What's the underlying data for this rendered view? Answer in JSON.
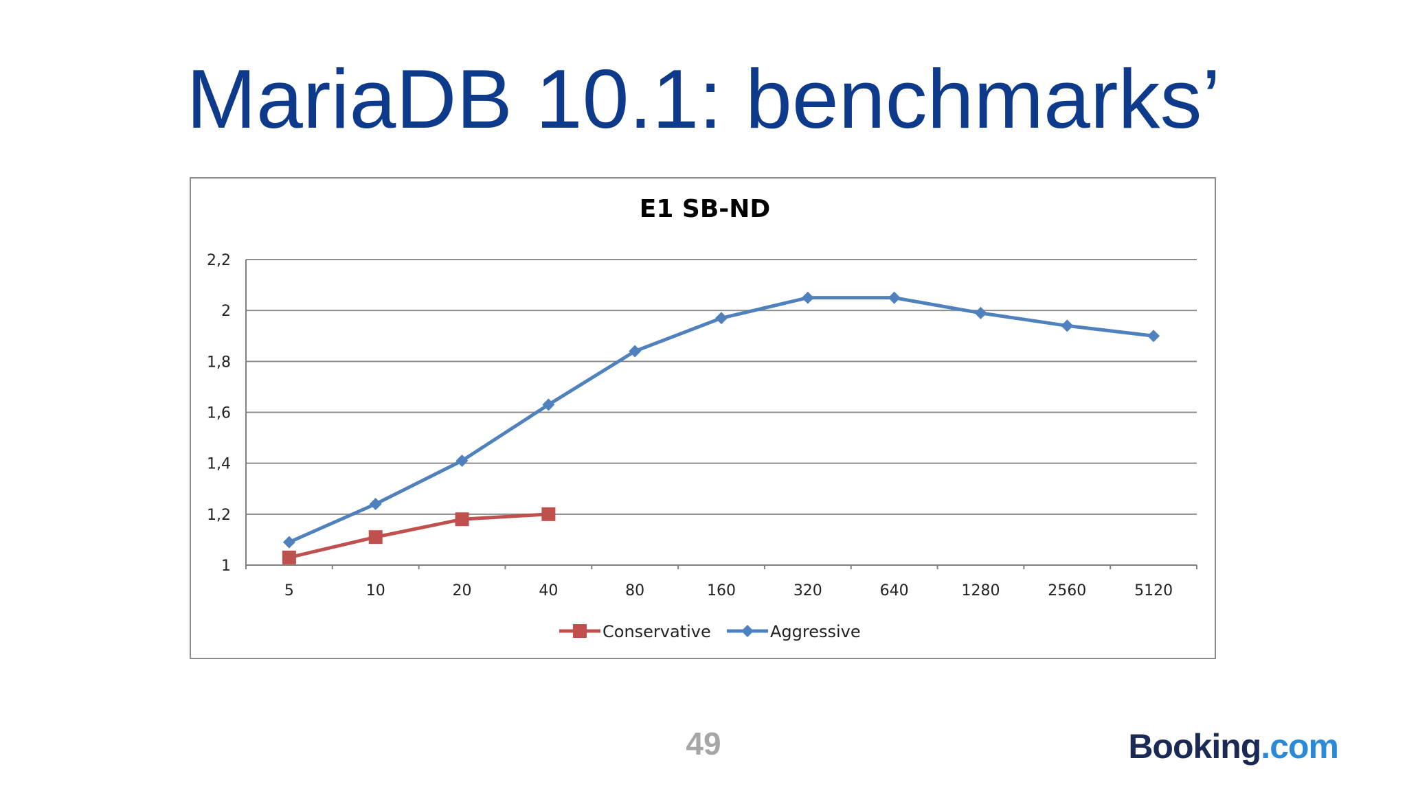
{
  "slide": {
    "title": "MariaDB 10.1: benchmarks’",
    "page_number": "49",
    "logo": {
      "text_main": "Booking",
      "text_accent": ".com",
      "color_main": "#1b2a55",
      "color_accent": "#2a8ad8"
    },
    "title_color": "#0d3a8a"
  },
  "chart_data": {
    "type": "line",
    "title": "E1 SB-ND",
    "xlabel": "",
    "ylabel": "",
    "categories": [
      "5",
      "10",
      "20",
      "40",
      "80",
      "160",
      "320",
      "640",
      "1280",
      "2560",
      "5120"
    ],
    "ylim": [
      1,
      2.2
    ],
    "yticks": [
      1,
      1.2,
      1.4,
      1.6,
      1.8,
      2,
      2.2
    ],
    "ytick_labels": [
      "1",
      "1,2",
      "1,4",
      "1,6",
      "1,8",
      "2",
      "2,2"
    ],
    "grid": "horizontal",
    "legend_position": "bottom",
    "series": [
      {
        "name": "Conservative",
        "color": "#c0504d",
        "marker": "square",
        "values": [
          1.03,
          1.11,
          1.18,
          1.2,
          null,
          null,
          null,
          null,
          null,
          null,
          null
        ]
      },
      {
        "name": "Aggressive",
        "color": "#4f81bd",
        "marker": "diamond",
        "values": [
          1.09,
          1.24,
          1.41,
          1.63,
          1.84,
          1.97,
          2.05,
          2.05,
          1.99,
          1.94,
          1.9
        ]
      }
    ]
  }
}
